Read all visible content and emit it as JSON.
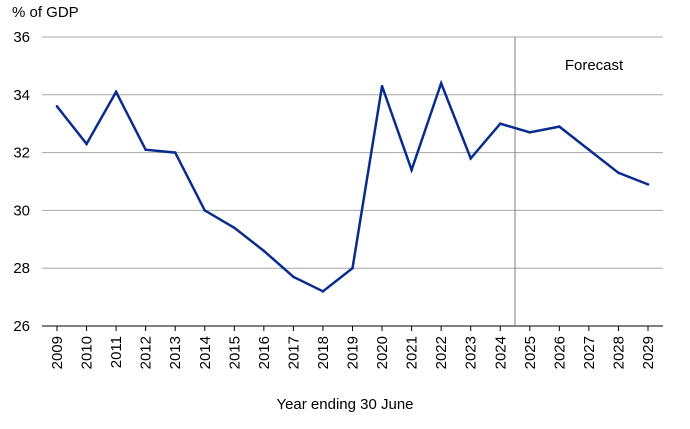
{
  "chart_data": {
    "type": "line",
    "ylabel": "% of GDP",
    "xlabel": "Year ending 30 June",
    "ylim": [
      26,
      36
    ],
    "yticks": [
      26,
      28,
      30,
      32,
      34,
      36
    ],
    "grid": "horizontal",
    "categories": [
      "2009",
      "2010",
      "2011",
      "2012",
      "2013",
      "2014",
      "2015",
      "2016",
      "2017",
      "2018",
      "2019",
      "2020",
      "2021",
      "2022",
      "2023",
      "2024",
      "2025",
      "2026",
      "2027",
      "2028",
      "2029"
    ],
    "series": [
      {
        "values": [
          33.6,
          32.3,
          34.1,
          32.1,
          32.0,
          30.0,
          29.4,
          28.6,
          27.7,
          27.2,
          28.0,
          34.3,
          31.4,
          34.4,
          31.8,
          33.0,
          32.7,
          32.9,
          32.1,
          31.3,
          30.9
        ],
        "color": "#0a2c8c"
      }
    ],
    "annotation": {
      "text": "Forecast",
      "divider_between": [
        "2024",
        "2025"
      ]
    },
    "colors": {
      "line": "#0a2c8c",
      "grid": "#a6a6a6",
      "divider": "#7f7f7f"
    }
  }
}
